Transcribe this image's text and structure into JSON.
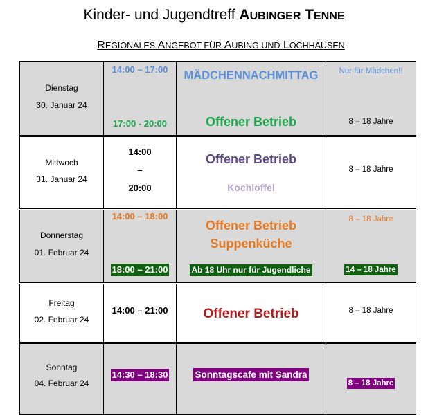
{
  "header": {
    "title_prefix": "Kinder- und Jugendtreff ",
    "brand_word1_initial": "A",
    "brand_word1_rest": "UBINGER",
    "brand_word2_initial": "T",
    "brand_word2_rest": "ENNE",
    "subtitle_p1_initial": "R",
    "subtitle_p1_rest": "EGIONALES",
    "subtitle_p2_initial": "A",
    "subtitle_p2_rest": "NGEBOT FÜR",
    "subtitle_p3_initial": "A",
    "subtitle_p3_rest": "UBING UND",
    "subtitle_p4_initial": "L",
    "subtitle_p4_rest": "OCHHAUSEN"
  },
  "rows": [
    {
      "day": "Dienstag",
      "date": "30. Januar 24",
      "time_a": "14:00 – 17:00",
      "time_b": "17:00 - 20:00",
      "program_a": "MÄDCHENNACHMITTAG",
      "program_b": "Offener Betrieb",
      "age_a": "Nur für Mädchen!!",
      "age_b": "8 – 18 Jahre"
    },
    {
      "day": "Mittwoch",
      "date": "31. Januar 24",
      "time_start": "14:00",
      "time_sep": "–",
      "time_end": "20:00",
      "program_a": "Offener Betrieb",
      "program_b": "Kochlöffel",
      "age": "8 – 18 Jahre"
    },
    {
      "day": "Donnerstag",
      "date": "01. Februar 24",
      "time_a": "14:00 – 18:00",
      "time_b": "18:00 – 21:00",
      "program_a": "Offener Betrieb",
      "program_b": "Suppenküche",
      "program_c": "Ab 18 Uhr nur für Jugendliche",
      "age_a": "8 – 18 Jahre",
      "age_b": "14 – 18 Jahre"
    },
    {
      "day": "Freitag",
      "date": "02. Februar 24",
      "time": "14:00 – 21:00",
      "program": "Offener Betrieb",
      "age": "8 – 18 Jahre"
    },
    {
      "day": "Sonntag",
      "date": "04. Februar 24",
      "time": "14:30 – 18:30",
      "program": "Sonntagscafe mit Sandra",
      "age": "8 – 18 Jahre"
    }
  ],
  "colors": {
    "blue": "#5b8fd6",
    "green": "#1aa34a",
    "purple": "#5c4a86",
    "lavender": "#b5a3cf",
    "orange": "#e67820",
    "red": "#b01c1c",
    "highlight_green": "#116110",
    "highlight_purple": "#800080",
    "row_grey": "#d9d9d9"
  }
}
